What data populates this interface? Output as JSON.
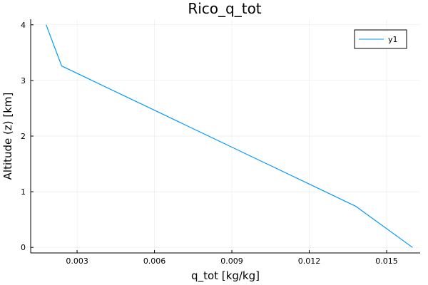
{
  "chart_data": {
    "type": "line",
    "title": "Rico_q_tot",
    "xlabel": "q_tot [kg/kg]",
    "ylabel": "Altitude (z) [km]",
    "xlim": [
      0.0012,
      0.0163
    ],
    "ylim": [
      -0.1,
      4.1
    ],
    "xticks": [
      0.003,
      0.006,
      0.009,
      0.012,
      0.015
    ],
    "xtick_labels": [
      "0.003",
      "0.006",
      "0.009",
      "0.012",
      "0.015"
    ],
    "yticks": [
      0,
      1,
      2,
      3,
      4
    ],
    "ytick_labels": [
      "0",
      "1",
      "2",
      "3",
      "4"
    ],
    "grid": true,
    "legend_position": "top-right",
    "series": [
      {
        "name": "y1",
        "color": "#009af9",
        "x": [
          0.0018,
          0.0024,
          0.0138,
          0.016
        ],
        "y": [
          4.0,
          3.26,
          0.74,
          0.0
        ]
      }
    ]
  }
}
